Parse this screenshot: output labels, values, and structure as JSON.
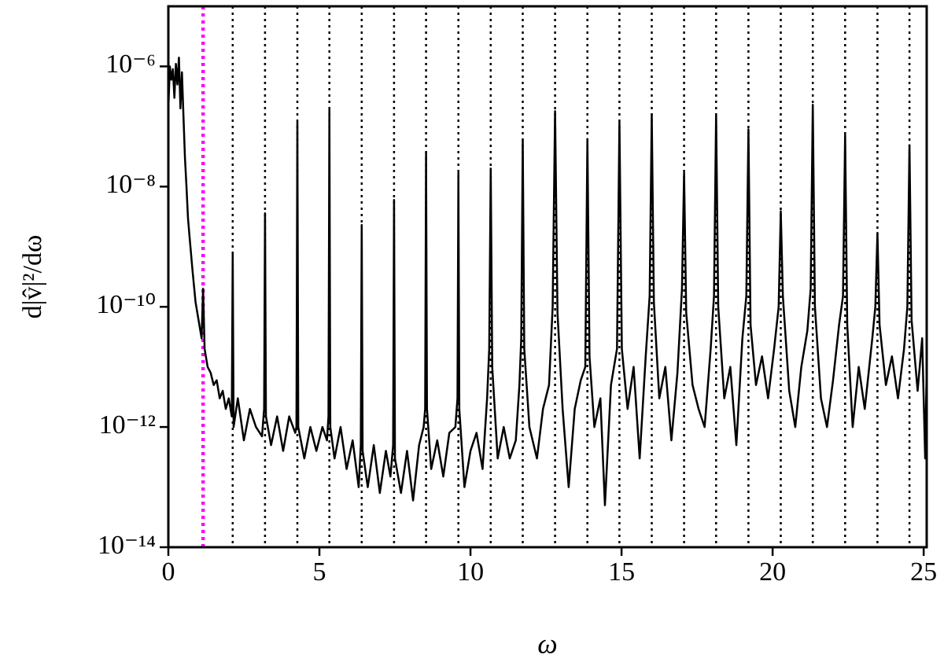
{
  "chart_data": {
    "type": "line",
    "xlabel": "ω",
    "ylabel": "d|v̂|²/dω",
    "log_y": true,
    "color": "#000000",
    "xlim": [
      0,
      25.1
    ],
    "ylim": [
      1e-14,
      1e-05
    ],
    "xticks": [
      0,
      5,
      10,
      15,
      20,
      25
    ],
    "yticks": [
      {
        "value": 1e-14,
        "label": "10⁻¹⁴"
      },
      {
        "value": 1e-12,
        "label": "10⁻¹²"
      },
      {
        "value": 1e-10,
        "label": "10⁻¹⁰"
      },
      {
        "value": 1e-08,
        "label": "10⁻⁸"
      },
      {
        "value": 1e-06,
        "label": "10⁻⁶"
      }
    ],
    "highlight_vline": {
      "color": "#ff00ff",
      "x": 1.15
    },
    "vlines": {
      "color": "#000000",
      "x": [
        2.13,
        3.2,
        4.27,
        5.33,
        6.4,
        7.47,
        8.53,
        9.6,
        10.67,
        11.73,
        12.8,
        13.87,
        14.93,
        16.0,
        17.07,
        18.13,
        19.2,
        20.27,
        21.33,
        22.4,
        23.47,
        24.53
      ]
    },
    "x": [
      0,
      0.05,
      0.1,
      0.15,
      0.2,
      0.25,
      0.3,
      0.35,
      0.4,
      0.45,
      0.5,
      0.55,
      0.6,
      0.65,
      0.7,
      0.8,
      0.9,
      1.0,
      1.1,
      1.15,
      1.2,
      1.3,
      1.4,
      1.5,
      1.6,
      1.7,
      1.8,
      1.9,
      2.0,
      2.1,
      2.13,
      2.16,
      2.3,
      2.5,
      2.7,
      2.9,
      3.1,
      3.17,
      3.2,
      3.23,
      3.4,
      3.6,
      3.8,
      4.0,
      4.2,
      4.24,
      4.27,
      4.3,
      4.5,
      4.7,
      4.9,
      5.1,
      5.25,
      5.3,
      5.33,
      5.36,
      5.5,
      5.7,
      5.9,
      6.1,
      6.3,
      6.37,
      6.4,
      6.43,
      6.6,
      6.8,
      7.0,
      7.2,
      7.35,
      7.44,
      7.47,
      7.5,
      7.7,
      7.9,
      8.1,
      8.3,
      8.45,
      8.5,
      8.53,
      8.56,
      8.7,
      8.9,
      9.1,
      9.3,
      9.5,
      9.57,
      9.6,
      9.63,
      9.8,
      10.0,
      10.2,
      10.4,
      10.55,
      10.62,
      10.67,
      10.72,
      10.9,
      11.1,
      11.3,
      11.5,
      11.62,
      11.68,
      11.73,
      11.78,
      11.95,
      12.2,
      12.4,
      12.6,
      12.72,
      12.8,
      12.88,
      13.05,
      13.25,
      13.45,
      13.65,
      13.8,
      13.87,
      13.94,
      14.1,
      14.3,
      14.45,
      14.65,
      14.85,
      14.93,
      15.01,
      15.2,
      15.4,
      15.6,
      15.8,
      15.93,
      16.0,
      16.07,
      16.25,
      16.45,
      16.65,
      16.85,
      17.0,
      17.07,
      17.14,
      17.35,
      17.55,
      17.75,
      17.95,
      18.06,
      18.13,
      18.2,
      18.4,
      18.6,
      18.8,
      19.0,
      19.13,
      19.2,
      19.27,
      19.45,
      19.65,
      19.85,
      20.05,
      20.2,
      20.27,
      20.34,
      20.55,
      20.75,
      20.95,
      21.15,
      21.26,
      21.33,
      21.4,
      21.6,
      21.8,
      22.0,
      22.2,
      22.33,
      22.4,
      22.47,
      22.65,
      22.85,
      23.05,
      23.3,
      23.4,
      23.47,
      23.54,
      23.75,
      23.95,
      24.15,
      24.35,
      24.46,
      24.53,
      24.6,
      24.8,
      24.95,
      25.05,
      25.1
    ],
    "values": [
      2e-07,
      1e-06,
      6e-07,
      9e-07,
      3e-07,
      1.1e-06,
      5e-07,
      1.4e-06,
      2e-07,
      8e-07,
      1.5e-07,
      3e-08,
      1e-08,
      3e-09,
      1.5e-09,
      4e-10,
      1.2e-10,
      6e-11,
      3e-11,
      2e-10,
      2e-11,
      1e-11,
      8e-12,
      5e-12,
      6e-12,
      3e-12,
      4e-12,
      2e-12,
      3e-12,
      1.5e-12,
      8e-10,
      1e-12,
      3e-12,
      6e-13,
      2e-12,
      1e-12,
      7e-13,
      2e-12,
      3.6e-09,
      1.5e-12,
      5e-13,
      1.5e-12,
      4e-13,
      1.5e-12,
      8e-13,
      1e-12,
      1.2e-07,
      1e-12,
      3e-13,
      1e-12,
      4e-13,
      1e-12,
      6e-13,
      1.5e-12,
      1.9e-07,
      1e-12,
      3e-13,
      1e-12,
      2e-13,
      6e-13,
      1e-13,
      5e-13,
      2.3e-09,
      4e-13,
      1e-13,
      5e-13,
      8e-14,
      4e-13,
      1.5e-13,
      5e-13,
      6e-09,
      3e-13,
      8e-14,
      4e-13,
      6e-14,
      5e-13,
      1e-12,
      2e-12,
      3.7e-08,
      2e-12,
      2e-13,
      6e-13,
      1.5e-13,
      8e-13,
      1e-12,
      3e-12,
      1.7e-08,
      2e-12,
      1e-13,
      4e-13,
      8e-13,
      2e-13,
      3e-12,
      2e-11,
      2e-08,
      1e-11,
      3e-13,
      1e-12,
      3e-13,
      6e-13,
      5e-12,
      3e-11,
      5.9e-08,
      2e-11,
      1e-12,
      3e-13,
      2e-12,
      5e-12,
      1e-10,
      1.8e-07,
      8e-11,
      2e-12,
      1e-13,
      2e-12,
      6e-12,
      1e-11,
      6.2e-08,
      1.5e-11,
      1e-12,
      3e-12,
      5e-14,
      5e-12,
      2e-11,
      1.2e-07,
      2e-11,
      2e-12,
      1e-11,
      3e-13,
      1.5e-11,
      1.5e-10,
      1.6e-07,
      1.2e-10,
      3e-12,
      1e-11,
      6e-13,
      8e-12,
      2e-10,
      1.7e-08,
      8e-11,
      5e-12,
      2e-12,
      1e-12,
      2e-11,
      1.5e-10,
      1.6e-07,
      1e-10,
      3e-12,
      1e-11,
      5e-13,
      3e-11,
      1.5e-10,
      9e-08,
      5e-11,
      5e-12,
      1.5e-11,
      3e-12,
      2e-11,
      1e-10,
      3.9e-09,
      1.5e-10,
      4e-12,
      1e-12,
      1e-11,
      4e-11,
      2e-10,
      2.3e-07,
      1e-10,
      3e-12,
      1e-12,
      6e-12,
      5e-11,
      1.5e-10,
      7.2e-08,
      5e-11,
      1e-12,
      1e-11,
      2e-12,
      3e-11,
      1e-10,
      1.7e-09,
      5e-11,
      5e-12,
      1.5e-11,
      3e-12,
      2e-11,
      1e-10,
      4.9e-08,
      6e-11,
      4e-12,
      3e-11,
      3e-13,
      1e-11
    ]
  }
}
